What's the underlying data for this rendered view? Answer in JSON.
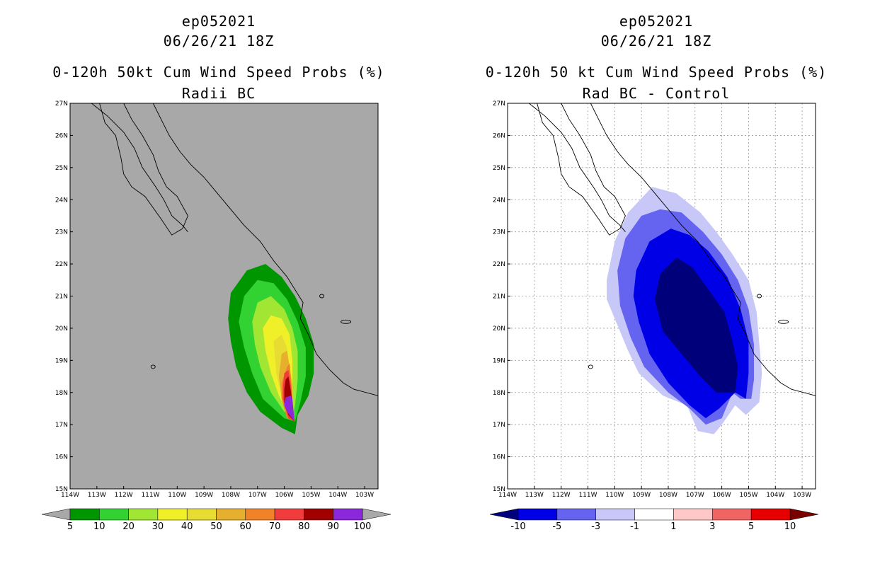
{
  "chart_data": [
    {
      "type": "heatmap",
      "storm_id": "ep052021",
      "datetime": "06/26/21 18Z",
      "title": "0-120h 50kt Cum Wind Speed Probs (%)",
      "subtitle": "Radii BC",
      "xlim": [
        -114,
        -102.5
      ],
      "ylim": [
        15,
        27
      ],
      "x_ticks": [
        "114W",
        "113W",
        "112W",
        "111W",
        "110W",
        "109W",
        "108W",
        "107W",
        "106W",
        "105W",
        "104W",
        "103W"
      ],
      "y_ticks": [
        "15N",
        "16N",
        "17N",
        "18N",
        "19N",
        "20N",
        "21N",
        "22N",
        "23N",
        "24N",
        "25N",
        "26N",
        "27N"
      ],
      "background_color": "#a8a8a8",
      "colorbar": {
        "labels": [
          "5",
          "10",
          "20",
          "30",
          "40",
          "50",
          "60",
          "70",
          "80",
          "90",
          "100"
        ],
        "colors": [
          "#009600",
          "#32d232",
          "#a0e632",
          "#f0f028",
          "#e6dc32",
          "#e6af2d",
          "#f08228",
          "#f03c3c",
          "#a00000",
          "#8c28dc"
        ],
        "end_color": "#a8a8a8"
      },
      "contours": [
        {
          "level": 5,
          "points": [
            [
              -108.1,
              20.3
            ],
            [
              -108.0,
              21.1
            ],
            [
              -107.4,
              21.8
            ],
            [
              -106.7,
              22.0
            ],
            [
              -106.1,
              21.6
            ],
            [
              -105.6,
              21.0
            ],
            [
              -105.2,
              20.3
            ],
            [
              -104.9,
              19.5
            ],
            [
              -104.9,
              18.6
            ],
            [
              -105.1,
              17.9
            ],
            [
              -105.5,
              17.3
            ],
            [
              -105.6,
              16.7
            ],
            [
              -106.1,
              16.9
            ],
            [
              -106.9,
              17.4
            ],
            [
              -107.4,
              18.0
            ],
            [
              -107.8,
              18.8
            ],
            [
              -108.0,
              19.6
            ]
          ]
        },
        {
          "level": 10,
          "points": [
            [
              -107.7,
              20.2
            ],
            [
              -107.5,
              21.0
            ],
            [
              -107.0,
              21.5
            ],
            [
              -106.4,
              21.4
            ],
            [
              -105.9,
              20.9
            ],
            [
              -105.5,
              20.2
            ],
            [
              -105.2,
              19.4
            ],
            [
              -105.2,
              18.5
            ],
            [
              -105.4,
              17.7
            ],
            [
              -105.6,
              17.1
            ],
            [
              -106.0,
              17.2
            ],
            [
              -106.8,
              17.8
            ],
            [
              -107.2,
              18.6
            ],
            [
              -107.5,
              19.4
            ]
          ]
        },
        {
          "level": 20,
          "points": [
            [
              -107.2,
              20.2
            ],
            [
              -107.0,
              20.8
            ],
            [
              -106.5,
              21.0
            ],
            [
              -106.0,
              20.6
            ],
            [
              -105.7,
              20.0
            ],
            [
              -105.5,
              19.3
            ],
            [
              -105.5,
              18.4
            ],
            [
              -105.6,
              17.6
            ],
            [
              -105.7,
              17.2
            ],
            [
              -106.0,
              17.4
            ],
            [
              -106.5,
              18.0
            ],
            [
              -106.9,
              18.8
            ],
            [
              -107.1,
              19.5
            ]
          ]
        },
        {
          "level": 30,
          "points": [
            [
              -106.8,
              20.0
            ],
            [
              -106.5,
              20.4
            ],
            [
              -106.1,
              20.3
            ],
            [
              -105.8,
              19.8
            ],
            [
              -105.7,
              19.0
            ],
            [
              -105.7,
              18.2
            ],
            [
              -105.7,
              17.4
            ],
            [
              -105.9,
              17.4
            ],
            [
              -106.2,
              17.9
            ],
            [
              -106.5,
              18.6
            ],
            [
              -106.7,
              19.3
            ]
          ]
        },
        {
          "level": 40,
          "points": [
            [
              -106.4,
              19.6
            ],
            [
              -106.1,
              19.8
            ],
            [
              -105.9,
              19.4
            ],
            [
              -105.8,
              18.7
            ],
            [
              -105.7,
              18.0
            ],
            [
              -105.7,
              17.3
            ],
            [
              -105.9,
              17.4
            ],
            [
              -106.1,
              17.9
            ],
            [
              -106.3,
              18.6
            ]
          ]
        },
        {
          "level": 50,
          "points": [
            [
              -106.1,
              19.2
            ],
            [
              -105.9,
              19.3
            ],
            [
              -105.8,
              18.8
            ],
            [
              -105.7,
              18.2
            ],
            [
              -105.7,
              17.2
            ],
            [
              -105.9,
              17.3
            ],
            [
              -106.1,
              17.8
            ],
            [
              -106.2,
              18.5
            ]
          ]
        },
        {
          "level": 60,
          "points": [
            [
              -105.9,
              18.8
            ],
            [
              -105.8,
              18.9
            ],
            [
              -105.75,
              18.4
            ],
            [
              -105.7,
              17.6
            ],
            [
              -105.6,
              17.1
            ],
            [
              -105.9,
              17.2
            ],
            [
              -106.1,
              17.8
            ],
            [
              -106.1,
              18.3
            ]
          ]
        },
        {
          "level": 70,
          "points": [
            [
              -106.0,
              18.6
            ],
            [
              -105.85,
              18.7
            ],
            [
              -105.75,
              18.2
            ],
            [
              -105.62,
              17.1
            ],
            [
              -105.85,
              17.2
            ],
            [
              -106.05,
              17.8
            ],
            [
              -106.05,
              18.2
            ]
          ]
        },
        {
          "level": 80,
          "points": [
            [
              -105.95,
              18.4
            ],
            [
              -105.85,
              18.5
            ],
            [
              -105.75,
              18.0
            ],
            [
              -105.62,
              17.1
            ],
            [
              -105.85,
              17.3
            ],
            [
              -106.0,
              17.7
            ],
            [
              -106.0,
              18.1
            ]
          ]
        },
        {
          "level": 90,
          "points": [
            [
              -105.95,
              17.85
            ],
            [
              -105.75,
              17.9
            ],
            [
              -105.65,
              17.2
            ],
            [
              -105.85,
              17.4
            ],
            [
              -106.0,
              17.65
            ]
          ]
        },
        {
          "level": 100,
          "points": [
            [
              -105.95,
              17.8
            ],
            [
              -105.7,
              17.8
            ],
            [
              -105.62,
              17.1
            ],
            [
              -105.9,
              17.4
            ],
            [
              -106.0,
              17.6
            ]
          ]
        }
      ]
    },
    {
      "type": "heatmap",
      "storm_id": "ep052021",
      "datetime": "06/26/21 18Z",
      "title": "0-120h 50 kt Cum Wind Speed Probs (%)",
      "subtitle": "Rad BC - Control",
      "xlim": [
        -114,
        -102.5
      ],
      "ylim": [
        15,
        27
      ],
      "x_ticks": [
        "114W",
        "113W",
        "112W",
        "111W",
        "110W",
        "109W",
        "108W",
        "107W",
        "106W",
        "105W",
        "104W",
        "103W"
      ],
      "y_ticks": [
        "15N",
        "16N",
        "17N",
        "18N",
        "19N",
        "20N",
        "21N",
        "22N",
        "23N",
        "24N",
        "25N",
        "26N",
        "27N"
      ],
      "background_color": "#ffffff",
      "colorbar": {
        "labels": [
          "-10",
          "-5",
          "-3",
          "-1",
          "1",
          "3",
          "5",
          "10"
        ],
        "colors": [
          "#0000e6",
          "#6464f0",
          "#c8c8f8",
          "#ffffff",
          "#ffc8c8",
          "#f06464",
          "#e60000"
        ],
        "start_color": "#00007a",
        "end_color": "#7a0000"
      },
      "contours": [
        {
          "level": -1,
          "points": [
            [
              -110.3,
              21.5
            ],
            [
              -110.0,
              22.7
            ],
            [
              -109.5,
              23.6
            ],
            [
              -108.6,
              24.4
            ],
            [
              -107.7,
              24.2
            ],
            [
              -106.8,
              23.6
            ],
            [
              -106.2,
              23.0
            ],
            [
              -105.6,
              22.3
            ],
            [
              -105.0,
              21.5
            ],
            [
              -104.7,
              20.5
            ],
            [
              -104.6,
              19.5
            ],
            [
              -104.5,
              18.6
            ],
            [
              -104.6,
              17.7
            ],
            [
              -105.1,
              17.3
            ],
            [
              -105.5,
              17.6
            ],
            [
              -106.0,
              17.0
            ],
            [
              -106.3,
              16.7
            ],
            [
              -106.9,
              16.8
            ],
            [
              -107.3,
              17.6
            ],
            [
              -108.2,
              17.9
            ],
            [
              -109.1,
              18.6
            ],
            [
              -109.5,
              19.3
            ],
            [
              -109.9,
              20.1
            ],
            [
              -110.3,
              20.9
            ]
          ]
        },
        {
          "level": -3,
          "points": [
            [
              -109.9,
              21.8
            ],
            [
              -109.6,
              22.8
            ],
            [
              -109.0,
              23.5
            ],
            [
              -108.3,
              23.7
            ],
            [
              -107.5,
              23.6
            ],
            [
              -106.7,
              23.0
            ],
            [
              -106.0,
              22.3
            ],
            [
              -105.4,
              21.5
            ],
            [
              -105.0,
              20.6
            ],
            [
              -104.8,
              19.5
            ],
            [
              -104.8,
              18.4
            ],
            [
              -104.9,
              17.8
            ],
            [
              -105.3,
              17.8
            ],
            [
              -105.6,
              18.0
            ],
            [
              -106.0,
              17.2
            ],
            [
              -106.6,
              17.0
            ],
            [
              -107.2,
              17.5
            ],
            [
              -108.0,
              18.0
            ],
            [
              -108.9,
              18.8
            ],
            [
              -109.4,
              19.7
            ],
            [
              -109.8,
              20.7
            ]
          ]
        },
        {
          "level": -5,
          "points": [
            [
              -109.2,
              21.8
            ],
            [
              -108.7,
              22.7
            ],
            [
              -107.9,
              23.1
            ],
            [
              -107.2,
              22.9
            ],
            [
              -106.5,
              22.4
            ],
            [
              -105.8,
              21.6
            ],
            [
              -105.3,
              20.6
            ],
            [
              -105.0,
              19.6
            ],
            [
              -105.0,
              18.6
            ],
            [
              -105.1,
              17.8
            ],
            [
              -105.5,
              18.0
            ],
            [
              -106.1,
              17.5
            ],
            [
              -106.6,
              17.2
            ],
            [
              -107.2,
              17.6
            ],
            [
              -108.0,
              18.3
            ],
            [
              -108.7,
              19.2
            ],
            [
              -109.1,
              20.2
            ],
            [
              -109.3,
              21.0
            ]
          ]
        },
        {
          "level": -10,
          "points": [
            [
              -108.5,
              20.9
            ],
            [
              -108.3,
              21.7
            ],
            [
              -107.7,
              22.2
            ],
            [
              -107.1,
              21.9
            ],
            [
              -106.5,
              21.2
            ],
            [
              -105.9,
              20.5
            ],
            [
              -105.6,
              19.6
            ],
            [
              -105.4,
              18.8
            ],
            [
              -105.5,
              18.0
            ],
            [
              -106.2,
              18.0
            ],
            [
              -106.8,
              18.5
            ],
            [
              -107.5,
              19.2
            ],
            [
              -108.2,
              19.9
            ]
          ]
        }
      ]
    }
  ]
}
